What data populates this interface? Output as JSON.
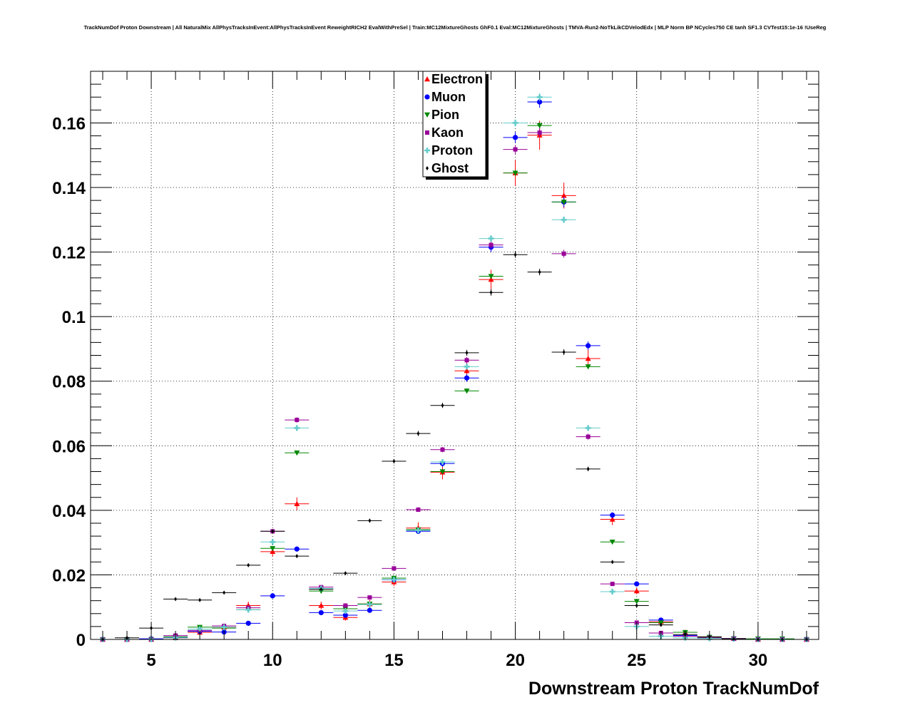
{
  "title": "TrackNumDof Proton Downstream | All NaturalMix AllPhysTracksInEvent:AllPhysTracksInEvent ReweightRICH2 EvalWithPreSel | Train:MC12MixtureGhosts GhF0.1 Eval:MC12MixtureGhosts | TMVA-Run2-NoTkLikCDVelodEdx | MLP Norm BP NCycles750 CE tanh SF1.3 CVTest15:1e-16 !UseReg",
  "chart_data": {
    "type": "scatter",
    "title": "TrackNumDof Proton Downstream | All NaturalMix AllPhysTracksInEvent:AllPhysTracksInEvent ReweightRICH2 EvalWithPreSel | Train:MC12MixtureGhosts GhF0.1 Eval:MC12MixtureGhosts | TMVA-Run2-NoTkLikCDVelodEdx | MLP Norm BP NCycles750 CE tanh SF1.3 CVTest15:1e-16 !UseReg",
    "xlabel": "Downstream Proton TrackNumDof",
    "ylabel": "",
    "xlim": [
      2.5,
      32.5
    ],
    "ylim": [
      0,
      0.176
    ],
    "x_ticks": [
      5,
      10,
      15,
      20,
      25,
      30
    ],
    "x_tick_labels": [
      "5",
      "10",
      "15",
      "20",
      "25",
      "30"
    ],
    "y_ticks": [
      0,
      0.02,
      0.04,
      0.06,
      0.08,
      0.1,
      0.12,
      0.14,
      0.16
    ],
    "y_tick_labels": [
      "0",
      "0.02",
      "0.04",
      "0.06",
      "0.08",
      "0.1",
      "0.12",
      "0.14",
      "0.16"
    ],
    "grid": true,
    "legend_position": "top-center",
    "x": [
      3,
      4,
      5,
      6,
      7,
      8,
      9,
      10,
      11,
      12,
      13,
      14,
      15,
      16,
      17,
      18,
      19,
      20,
      21,
      22,
      23,
      24,
      25,
      26,
      27,
      28,
      29,
      30,
      31,
      32
    ],
    "series": [
      {
        "name": "Electron",
        "color": "#ff0000",
        "marker": "triangle-up",
        "values": [
          0,
          0,
          0,
          0.0005,
          0.0022,
          0.0038,
          0.0105,
          0.0272,
          0.042,
          0.0105,
          0.0068,
          0.011,
          0.0178,
          0.0345,
          0.0518,
          0.0832,
          0.1115,
          0.1445,
          0.1562,
          0.1375,
          0.087,
          0.0372,
          0.015,
          0.0055,
          0.0022,
          0.0008,
          0.0003,
          0,
          0,
          0
        ],
        "errors": [
          0,
          0,
          0,
          0.0004,
          0.0008,
          0.0009,
          0.0012,
          0.0015,
          0.002,
          0.0012,
          0.001,
          0.0012,
          0.0013,
          0.0018,
          0.0022,
          0.0025,
          0.003,
          0.004,
          0.0045,
          0.004,
          0.0028,
          0.0018,
          0.001,
          0.0006,
          0.0004,
          0.0002,
          0.0001,
          0,
          0,
          0
        ]
      },
      {
        "name": "Muon",
        "color": "#0000ff",
        "marker": "circle",
        "values": [
          0,
          0,
          0.0002,
          0.0007,
          0.0025,
          0.0023,
          0.005,
          0.0135,
          0.028,
          0.0083,
          0.0075,
          0.009,
          0.0185,
          0.0335,
          0.0545,
          0.081,
          0.1215,
          0.1555,
          0.1665,
          0.1355,
          0.091,
          0.0385,
          0.0172,
          0.006,
          0.0012,
          0.0007,
          0.0002,
          0,
          0,
          0
        ],
        "errors": [
          0,
          0,
          0.0001,
          0.0002,
          0.0003,
          0.0003,
          0.0004,
          0.0006,
          0.0008,
          0.0005,
          0.0004,
          0.0005,
          0.0006,
          0.0008,
          0.001,
          0.0012,
          0.0015,
          0.0017,
          0.0018,
          0.0016,
          0.0013,
          0.0009,
          0.0006,
          0.0004,
          0.0002,
          0.0001,
          0.0001,
          0,
          0,
          0
        ]
      },
      {
        "name": "Pion",
        "color": "#008800",
        "marker": "triangle-down",
        "values": [
          0,
          0,
          0,
          0.0008,
          0.0038,
          0.0035,
          0.0092,
          0.0282,
          0.0578,
          0.015,
          0.0095,
          0.011,
          0.019,
          0.034,
          0.052,
          0.077,
          0.1125,
          0.1445,
          0.1592,
          0.1355,
          0.0845,
          0.0302,
          0.0118,
          0.0052,
          0.0022,
          0.0007,
          0.0003,
          0.0002,
          0.0002,
          0
        ],
        "errors": [
          0,
          0,
          0,
          0.0001,
          0.0002,
          0.0002,
          0.0003,
          0.0004,
          0.0005,
          0.0003,
          0.0003,
          0.0003,
          0.0004,
          0.0005,
          0.0006,
          0.0007,
          0.0008,
          0.0009,
          0.001,
          0.0009,
          0.0007,
          0.0005,
          0.0003,
          0.0002,
          0.0001,
          0.0001,
          0.0001,
          0,
          0,
          0
        ]
      },
      {
        "name": "Kaon",
        "color": "#990099",
        "marker": "square",
        "values": [
          0,
          0,
          0,
          0.0012,
          0.0028,
          0.0042,
          0.0098,
          0.0335,
          0.068,
          0.0162,
          0.0105,
          0.013,
          0.022,
          0.0402,
          0.0588,
          0.0865,
          0.1222,
          0.1518,
          0.157,
          0.1195,
          0.0628,
          0.0172,
          0.0052,
          0.002,
          0.001,
          0.0005,
          0.0003,
          0,
          0,
          0
        ],
        "errors": [
          0,
          0,
          0,
          0.0002,
          0.0003,
          0.0003,
          0.0004,
          0.0006,
          0.0008,
          0.0004,
          0.0004,
          0.0004,
          0.0005,
          0.0007,
          0.0008,
          0.001,
          0.0012,
          0.0014,
          0.0014,
          0.0012,
          0.0009,
          0.0005,
          0.0003,
          0.0002,
          0.0001,
          0.0001,
          0.0001,
          0,
          0,
          0
        ]
      },
      {
        "name": "Proton",
        "color": "#66cccc",
        "marker": "cross",
        "values": [
          0,
          0,
          0,
          0.0005,
          0.0032,
          0.0038,
          0.0092,
          0.0302,
          0.0655,
          0.0158,
          0.0088,
          0.0108,
          0.0185,
          0.0338,
          0.055,
          0.0845,
          0.1242,
          0.16,
          0.168,
          0.13,
          0.0655,
          0.0148,
          0.004,
          0.001,
          0.0005,
          0.0003,
          0.0002,
          0,
          0,
          0
        ],
        "errors": [
          0,
          0,
          0,
          0.0001,
          0.0002,
          0.0002,
          0.0003,
          0.0004,
          0.0006,
          0.0003,
          0.0003,
          0.0003,
          0.0004,
          0.0005,
          0.0006,
          0.0008,
          0.001,
          0.0011,
          0.0012,
          0.001,
          0.0008,
          0.0004,
          0.0002,
          0.0001,
          0.0001,
          0.0001,
          0,
          0,
          0
        ]
      },
      {
        "name": "Ghost",
        "color": "#000000",
        "marker": "diamond",
        "values": [
          0,
          0.0005,
          0.0035,
          0.0125,
          0.0122,
          0.0145,
          0.023,
          0.0335,
          0.0258,
          0.0155,
          0.0205,
          0.0368,
          0.0552,
          0.0638,
          0.0725,
          0.0888,
          0.1075,
          0.1192,
          0.1138,
          0.089,
          0.0528,
          0.024,
          0.0105,
          0.0045,
          0.0015,
          0.0008,
          0.0002,
          0,
          0,
          0
        ],
        "errors": [
          0,
          0.0002,
          0.0003,
          0.0004,
          0.0004,
          0.0004,
          0.0005,
          0.0006,
          0.0005,
          0.0004,
          0.0005,
          0.0006,
          0.0007,
          0.0008,
          0.0008,
          0.0009,
          0.001,
          0.001,
          0.001,
          0.0009,
          0.0007,
          0.0005,
          0.0003,
          0.0002,
          0.0001,
          0.0001,
          0,
          0,
          0,
          0
        ]
      }
    ]
  }
}
